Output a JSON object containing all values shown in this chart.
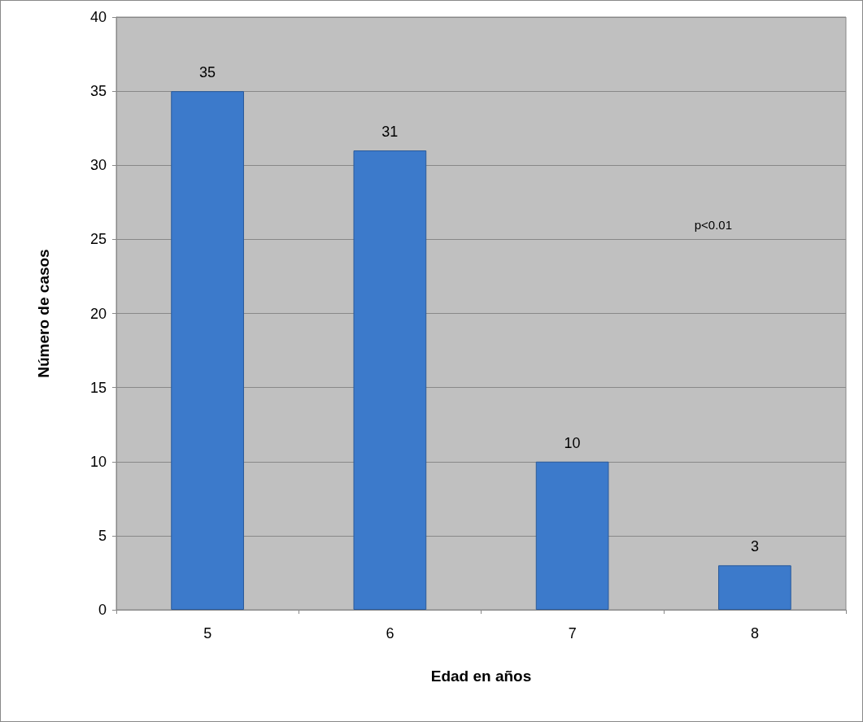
{
  "chart_data": {
    "type": "bar",
    "xlabel": "Edad en años",
    "ylabel": "Número de casos",
    "categories": [
      "5",
      "6",
      "7",
      "8"
    ],
    "values": [
      35,
      31,
      10,
      3
    ],
    "color": "#3c7acb",
    "ylim": [
      0,
      40
    ],
    "yticks": [
      0,
      5,
      10,
      15,
      20,
      25,
      30,
      35,
      40
    ],
    "grid": "y",
    "data_labels": true,
    "annotations": [
      "p<0.01"
    ]
  }
}
